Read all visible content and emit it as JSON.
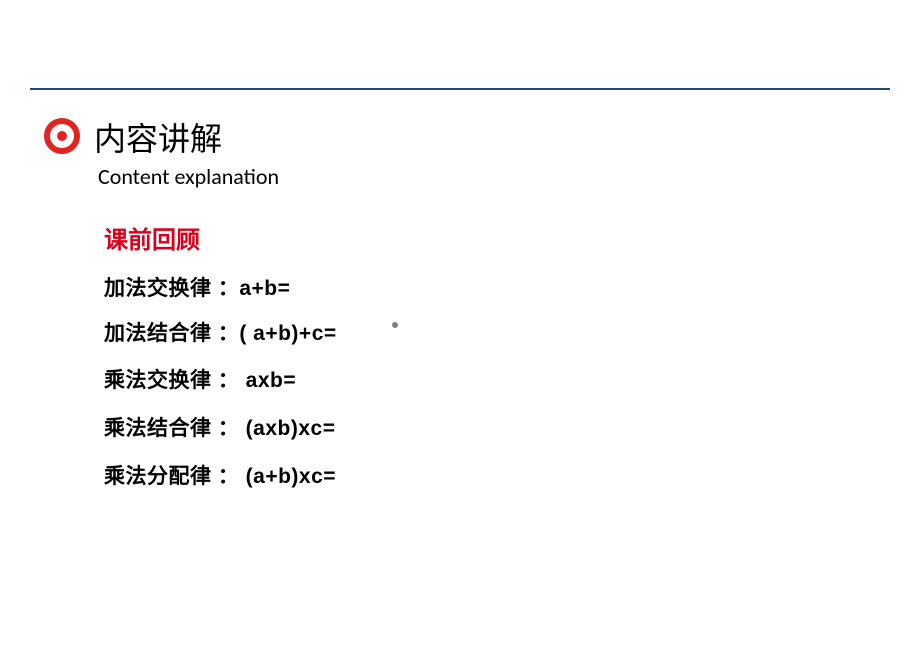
{
  "header": {
    "title_main": "内容讲解",
    "title_sub": "Content explanation",
    "line_color": "#1f497d",
    "bullet_color": "#e32322"
  },
  "review": {
    "title": "课前回顾",
    "title_color": "#d9001b"
  },
  "rules": {
    "rule1": "加法交换律 ：a+b=",
    "rule2": "加法结合律 ：( a+b)+c=",
    "rule3": "乘法交换律 ： axb=",
    "rule4": "乘法结合律 ： (axb)xc=",
    "rule5": "乘法分配律 ：  (a+b)xc="
  },
  "styling": {
    "background_color": "#ffffff",
    "text_color": "#000000",
    "dot_color": "#808080",
    "title_fontsize": 32,
    "sub_fontsize": 22,
    "review_fontsize": 24,
    "rule_fontsize": 21
  }
}
